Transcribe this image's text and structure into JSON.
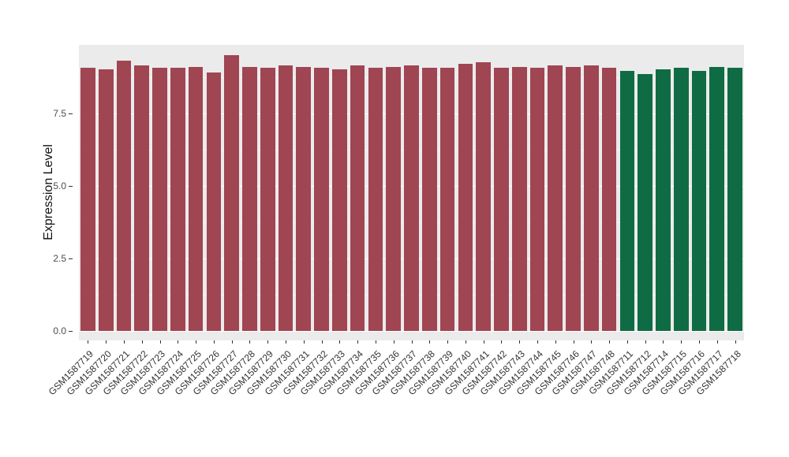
{
  "chart_data": {
    "type": "bar",
    "title": "",
    "xlabel": "",
    "ylabel": "Expression Level",
    "ylim": [
      0,
      9.85
    ],
    "yticks": [
      0.0,
      2.5,
      5.0,
      7.5
    ],
    "ytick_labels": [
      "0.0",
      "2.5",
      "5.0",
      "7.5"
    ],
    "grid": true,
    "legend": false,
    "categories": [
      "GSM1587719",
      "GSM1587720",
      "GSM1587721",
      "GSM1587722",
      "GSM1587723",
      "GSM1587724",
      "GSM1587725",
      "GSM1587726",
      "GSM1587727",
      "GSM1587728",
      "GSM1587729",
      "GSM1587730",
      "GSM1587731",
      "GSM1587732",
      "GSM1587733",
      "GSM1587734",
      "GSM1587735",
      "GSM1587736",
      "GSM1587737",
      "GSM1587738",
      "GSM1587739",
      "GSM1587740",
      "GSM1587741",
      "GSM1587742",
      "GSM1587743",
      "GSM1587744",
      "GSM1587745",
      "GSM1587746",
      "GSM1587747",
      "GSM1587748",
      "GSM1587711",
      "GSM1587712",
      "GSM1587714",
      "GSM1587715",
      "GSM1587716",
      "GSM1587717",
      "GSM1587718"
    ],
    "values": [
      9.05,
      9.0,
      9.3,
      9.15,
      9.05,
      9.05,
      9.1,
      8.9,
      9.5,
      9.1,
      9.05,
      9.15,
      9.1,
      9.05,
      9.0,
      9.15,
      9.05,
      9.1,
      9.15,
      9.05,
      9.05,
      9.2,
      9.25,
      9.05,
      9.1,
      9.05,
      9.15,
      9.1,
      9.15,
      9.05,
      8.95,
      8.85,
      9.0,
      9.05,
      8.95,
      9.1,
      9.05
    ],
    "groups": [
      "red",
      "red",
      "red",
      "red",
      "red",
      "red",
      "red",
      "red",
      "red",
      "red",
      "red",
      "red",
      "red",
      "red",
      "red",
      "red",
      "red",
      "red",
      "red",
      "red",
      "red",
      "red",
      "red",
      "red",
      "red",
      "red",
      "red",
      "red",
      "red",
      "red",
      "green",
      "green",
      "green",
      "green",
      "green",
      "green",
      "green"
    ],
    "group_colors": {
      "red": "#A04552",
      "green": "#0F6B44"
    },
    "plot_background": "#EBEBEB",
    "grid_major_color": "#FFFFFF",
    "grid_minor_color": "#F4F4F4",
    "tick_label_color": "#4D4D4D",
    "axis_title_color": "#111111"
  }
}
